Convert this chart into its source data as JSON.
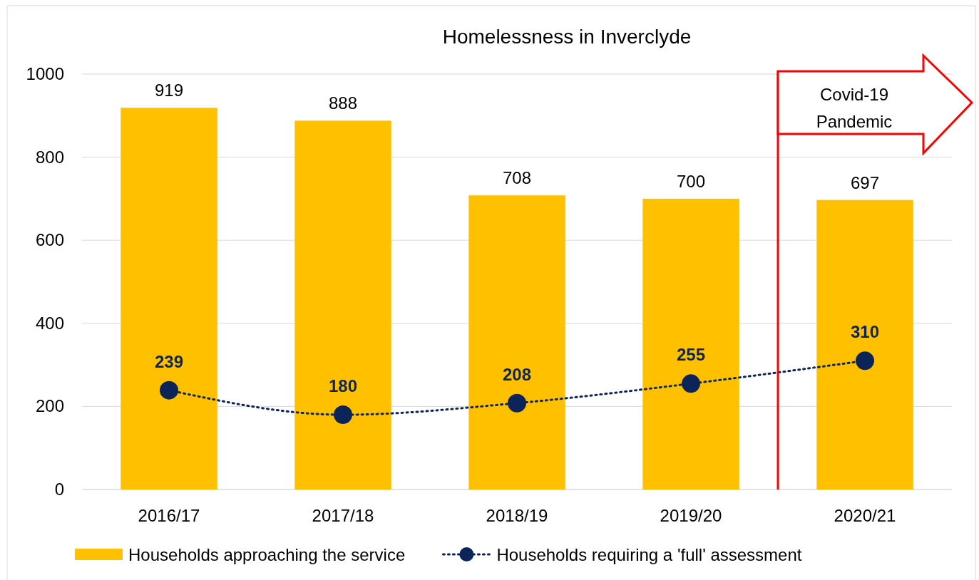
{
  "chart_data": {
    "type": "bar",
    "title": "Homelessness in Inverclyde",
    "categories": [
      "2016/17",
      "2017/18",
      "2018/19",
      "2019/20",
      "2020/21"
    ],
    "series": [
      {
        "name": "Households approaching the service",
        "color": "#ffc000",
        "values": [
          919,
          888,
          708,
          700,
          697
        ]
      },
      {
        "name": "Households requiring a 'full' assessment",
        "type": "line",
        "color": "#0b2559",
        "values": [
          239,
          180,
          208,
          255,
          310
        ],
        "marker": "circle",
        "line_style": "dotted"
      }
    ],
    "ylim": [
      0,
      1000
    ],
    "yticks": [
      0,
      200,
      400,
      600,
      800,
      1000
    ],
    "grid": "y",
    "legend": "bottom",
    "data_labels": true,
    "ref_lines": [
      {
        "axis": "x",
        "value": "2020/21",
        "label": "Covid-19 Pandemic",
        "color": "#ff0000"
      }
    ]
  }
}
